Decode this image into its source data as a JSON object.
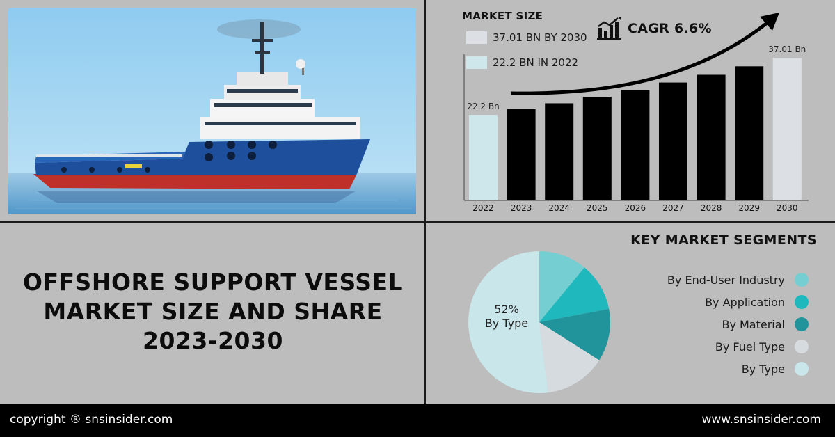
{
  "headline": {
    "line1": "OFFSHORE SUPPORT VESSEL",
    "line2": "MARKET SIZE AND SHARE",
    "line3": "2023-2030"
  },
  "market_size": {
    "title": "MARKET SIZE",
    "legend": [
      {
        "label": "37.01 BN BY 2030",
        "color": "#dcdfe3"
      },
      {
        "label": "22.2 BN IN 2022",
        "color": "#cde7ea"
      }
    ],
    "cagr_label": "CAGR 6.6%"
  },
  "segments": {
    "title": "KEY MARKET SEGMENTS",
    "items": [
      {
        "label": "By End-User Industry",
        "color": "#75cfd2"
      },
      {
        "label": "By Application",
        "color": "#1fb8bd"
      },
      {
        "label": "By Material",
        "color": "#21939a"
      },
      {
        "label": "By Fuel Type",
        "color": "#d6dbe0"
      },
      {
        "label": "By Type",
        "color": "#c9e6ea"
      }
    ]
  },
  "footer": {
    "copyright": "copyright ® snsinsider.com",
    "website": "www.snsinsider.com"
  },
  "chart_data": [
    {
      "type": "bar",
      "categories": [
        "2022",
        "2023",
        "2024",
        "2025",
        "2026",
        "2027",
        "2028",
        "2029",
        "2030"
      ],
      "values": [
        22.2,
        23.7,
        25.2,
        26.9,
        28.7,
        30.6,
        32.6,
        34.8,
        37.01
      ],
      "data_labels": {
        "0": "22.2 Bn",
        "8": "37.01 Bn"
      },
      "colors": [
        "#cde7ea",
        "#000000",
        "#000000",
        "#000000",
        "#000000",
        "#000000",
        "#000000",
        "#000000",
        "#dcdfe3"
      ],
      "title": "MARKET SIZE",
      "xlabel": "",
      "ylabel": "",
      "ylim": [
        0,
        40
      ],
      "grid": false
    },
    {
      "type": "pie",
      "labels": [
        "By End-User Industry",
        "By Application",
        "By Material",
        "By Fuel Type",
        "By Type"
      ],
      "values": [
        11,
        11,
        12,
        14,
        52
      ],
      "colors": [
        "#75cfd2",
        "#1fb8bd",
        "#21939a",
        "#d6dbe0",
        "#c9e6ea"
      ],
      "annotation": {
        "value": "52%",
        "label": "By Type"
      }
    }
  ]
}
